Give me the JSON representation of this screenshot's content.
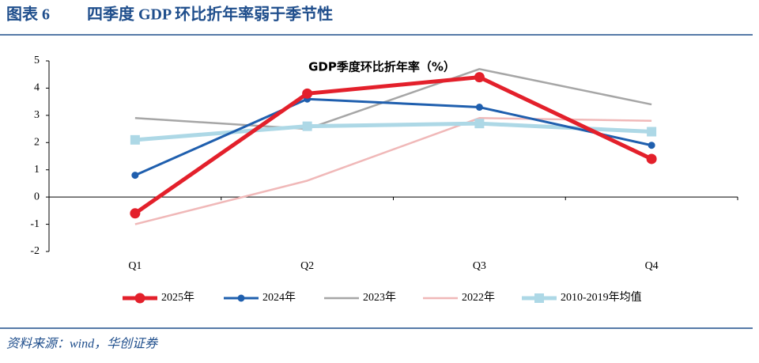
{
  "header": {
    "label": "图表 6",
    "title": "四季度 GDP 环比折年率弱于季节性"
  },
  "chart_data": {
    "type": "line",
    "title": "GDP季度环比折年率（%）",
    "categories": [
      "Q1",
      "Q2",
      "Q3",
      "Q4"
    ],
    "series": [
      {
        "name": "2025年",
        "color": "#e3202b",
        "marker": "circle",
        "values": [
          -0.6,
          3.8,
          4.4,
          1.4
        ]
      },
      {
        "name": "2024年",
        "color": "#1f5fae",
        "marker": "circle",
        "values": [
          0.8,
          3.6,
          3.3,
          1.9
        ]
      },
      {
        "name": "2023年",
        "color": "#a6a6a6",
        "values": [
          2.9,
          2.5,
          4.7,
          3.4
        ]
      },
      {
        "name": "2022年",
        "color": "#f0b8b8",
        "values": [
          -1.0,
          0.6,
          2.9,
          2.8
        ]
      },
      {
        "name": "2010-2019年均值",
        "color": "#add8e6",
        "marker": "square",
        "values": [
          2.1,
          2.6,
          2.7,
          2.4
        ]
      }
    ],
    "ylim": [
      -2,
      5
    ],
    "yticks": [
      -2,
      -1,
      0,
      1,
      2,
      3,
      4,
      5
    ],
    "grid": false,
    "legend": "bottom"
  },
  "source": "资料来源：wind，华创证券"
}
